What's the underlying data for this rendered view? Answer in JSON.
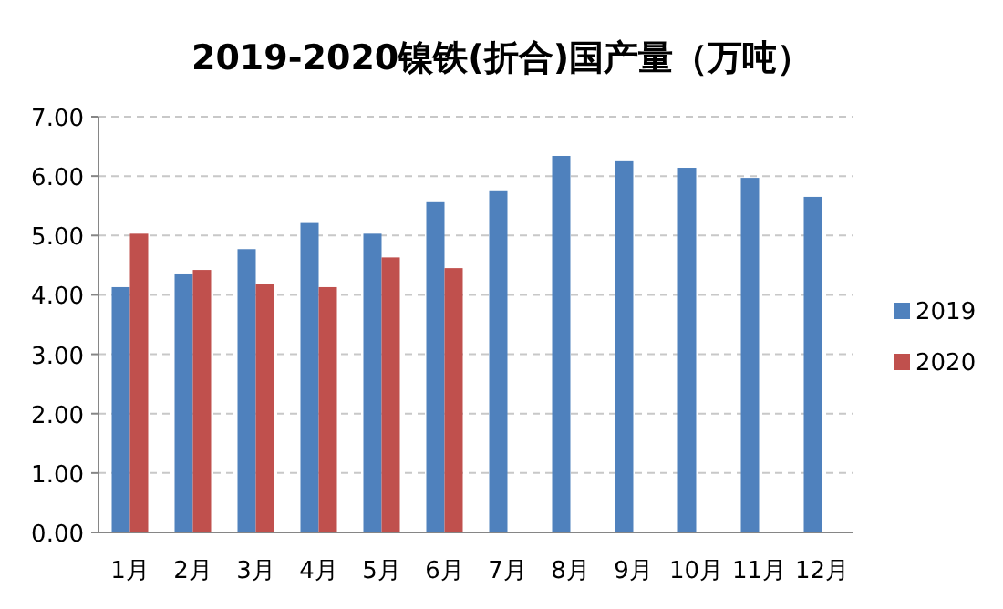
{
  "chart_data": {
    "type": "bar",
    "title": "2019-2020镍铁(折合)国产量（万吨）",
    "categories": [
      "1月",
      "2月",
      "3月",
      "4月",
      "5月",
      "6月",
      "7月",
      "8月",
      "9月",
      "10月",
      "11月",
      "12月"
    ],
    "series": [
      {
        "name": "2019",
        "color": "#4f81bd",
        "values": [
          4.13,
          4.36,
          4.77,
          5.21,
          5.03,
          5.56,
          5.76,
          6.34,
          6.25,
          6.14,
          5.97,
          5.65
        ]
      },
      {
        "name": "2020",
        "color": "#c0504d",
        "values": [
          5.03,
          4.42,
          4.19,
          4.13,
          4.63,
          4.45,
          null,
          null,
          null,
          null,
          null,
          null
        ]
      }
    ],
    "ylim": [
      0,
      7
    ],
    "yticks": [
      {
        "value": 0,
        "label": "0.00"
      },
      {
        "value": 1,
        "label": "1.00"
      },
      {
        "value": 2,
        "label": "2.00"
      },
      {
        "value": 3,
        "label": "3.00"
      },
      {
        "value": 4,
        "label": "4.00"
      },
      {
        "value": 5,
        "label": "5.00"
      },
      {
        "value": 6,
        "label": "6.00"
      },
      {
        "value": 7,
        "label": "7.00"
      }
    ],
    "grid": "y",
    "legend": "right"
  }
}
